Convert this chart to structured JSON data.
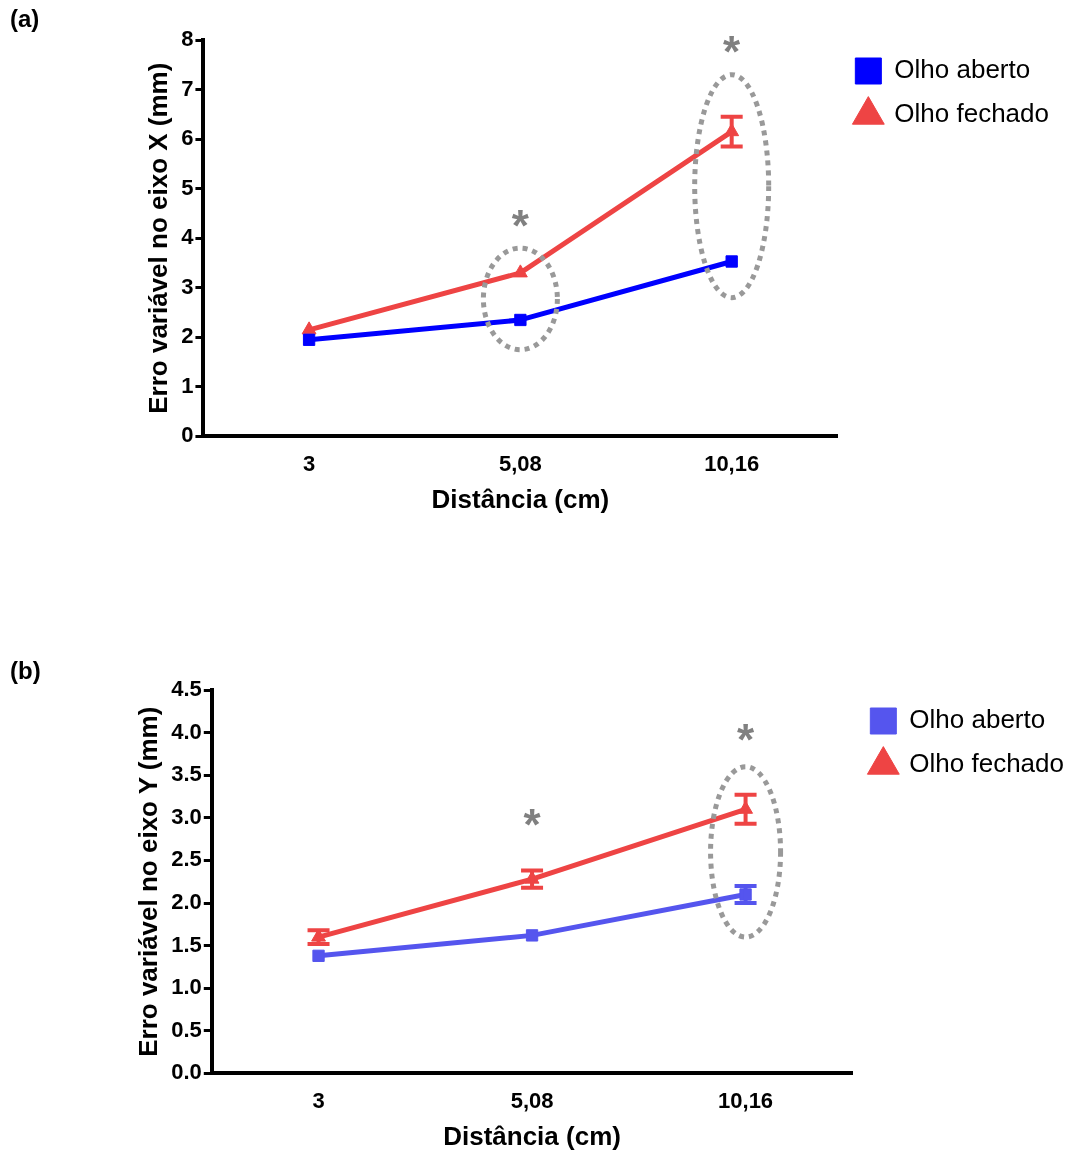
{
  "chart_data": [
    {
      "type": "line",
      "title": "(a)",
      "xlabel": "Distância (cm)",
      "ylabel": "Erro variável no eixo X (mm)",
      "categories": [
        "3",
        "5,08",
        "10,16"
      ],
      "series": [
        {
          "name": "Olho aberto",
          "color": "#0000ff",
          "marker": "square",
          "values": [
            1.95,
            2.35,
            3.53
          ],
          "errors": [
            null,
            null,
            null
          ]
        },
        {
          "name": "Olho fechado",
          "color": "#ee4444",
          "marker": "triangle",
          "values": [
            2.15,
            3.3,
            6.15
          ],
          "errors": [
            null,
            null,
            0.3
          ]
        }
      ],
      "ylim": [
        0,
        8
      ],
      "yticks": [
        0,
        1,
        2,
        3,
        4,
        5,
        6,
        7,
        8
      ],
      "grid": false,
      "legend": "top right",
      "line_style": "solid",
      "annotations": [
        "*",
        "*"
      ]
    },
    {
      "type": "line",
      "title": "(b)",
      "xlabel": "Distância (cm)",
      "ylabel": "Erro variável no eixo Y (mm)",
      "categories": [
        "3",
        "5,08",
        "10,16"
      ],
      "series": [
        {
          "name": "Olho aberto",
          "color": "#5555ee",
          "marker": "square",
          "values": [
            1.38,
            1.62,
            2.1
          ],
          "errors": [
            null,
            null,
            0.1
          ]
        },
        {
          "name": "Olho fechado",
          "color": "#ee4444",
          "marker": "triangle",
          "values": [
            1.6,
            2.28,
            3.1
          ],
          "errors": [
            0.08,
            0.1,
            0.17
          ]
        }
      ],
      "ylim": [
        0,
        4.5
      ],
      "yticks": [
        {
          "value": 0,
          "label": "0.0"
        },
        {
          "value": 0.5,
          "label": "0.5"
        },
        {
          "value": 1,
          "label": "1.0"
        },
        {
          "value": 1.5,
          "label": "1.5"
        },
        {
          "value": 2,
          "label": "2.0"
        },
        {
          "value": 2.5,
          "label": "2.5"
        },
        {
          "value": 3,
          "label": "3.0"
        },
        {
          "value": 3.5,
          "label": "3.5"
        },
        {
          "value": 4,
          "label": "4.0"
        },
        {
          "value": 4.5,
          "label": "4.5"
        }
      ],
      "grid": false,
      "legend": "top right",
      "line_style": "solid",
      "annotations": [
        "*",
        "*"
      ]
    }
  ]
}
